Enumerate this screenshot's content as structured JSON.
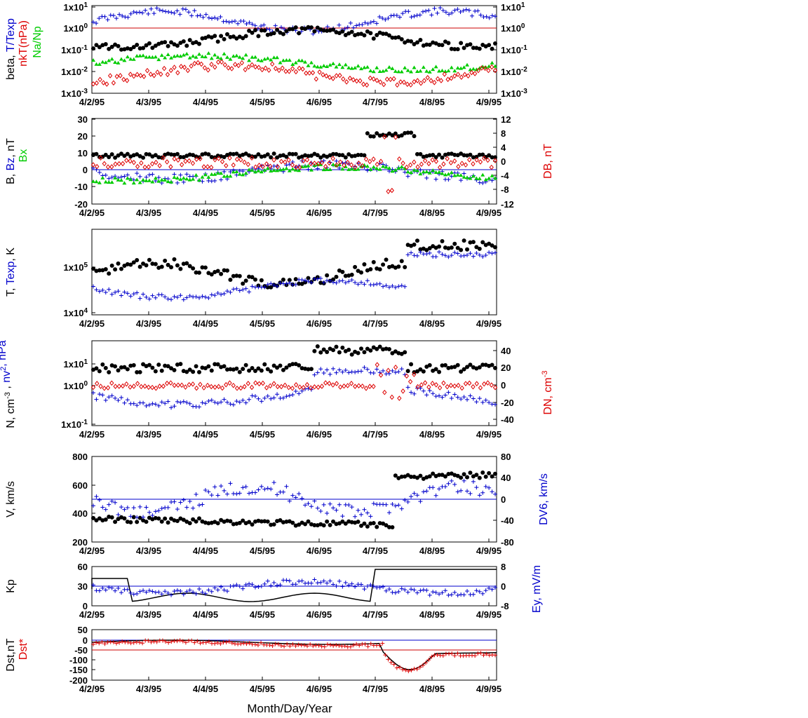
{
  "chart_data": {
    "type": "scatter",
    "x_categories": [
      "4/2/95",
      "4/3/95",
      "4/4/95",
      "4/5/95",
      "4/6/95",
      "4/7/95",
      "4/8/95",
      "4/9/95"
    ],
    "xlabel": "Month/Day/Year",
    "panels": [
      {
        "id": "beta",
        "ylabel_left": [
          {
            "text": "beta, ",
            "color": "#000000"
          },
          {
            "text": "T/Texp",
            "color": "#0000cc"
          }
        ],
        "ylabel_left2": [
          {
            "text": "nkT(nPa)",
            "color": "#dd0000"
          }
        ],
        "ylabel_left3": [
          {
            "text": "Na/Np",
            "color": "#00cc00"
          }
        ],
        "yscale": "log",
        "ylim": [
          0.001,
          10
        ],
        "yticks_left": [
          "1x10-3",
          "1x10-2",
          "1x10-1",
          "1x100",
          "1x101"
        ],
        "yticks_right": [
          "1x10-3",
          "1x10-2",
          "1x10-1",
          "1x100",
          "1x101"
        ],
        "reference_line": {
          "value": 1,
          "color": "#cc0000"
        }
      },
      {
        "id": "magnetic",
        "ylabel_left": [
          {
            "text": "B, ",
            "color": "#000000"
          },
          {
            "text": "Bz",
            "color": "#0000cc"
          },
          {
            "text": ", nT",
            "color": "#000000"
          }
        ],
        "ylabel_left2": [
          {
            "text": "Bx",
            "color": "#00cc00"
          }
        ],
        "ylabel_right": [
          {
            "text": "DB, nT",
            "color": "#dd0000"
          }
        ],
        "ylim": [
          -20,
          30
        ],
        "ylim_right": [
          -12,
          12
        ],
        "yticks_left": [
          "30",
          "20",
          "10",
          "0",
          "-10",
          "-20"
        ],
        "yticks_right": [
          "12",
          "8",
          "4",
          "0",
          "-4",
          "-8",
          "-12"
        ],
        "reference_line": {
          "value": 0,
          "color": "#0000cc"
        }
      },
      {
        "id": "temperature",
        "ylabel_left": [
          {
            "text": "T, ",
            "color": "#000000"
          },
          {
            "text": "Texp",
            "color": "#0000cc"
          },
          {
            "text": ", K",
            "color": "#000000"
          }
        ],
        "yscale": "log",
        "yticks_left": [
          "1x104",
          "1x105"
        ]
      },
      {
        "id": "density",
        "ylabel_left": [
          {
            "text": "N, cm-3 , ",
            "color": "#000000"
          },
          {
            "text": "nv2, nPa",
            "color": "#0000cc"
          }
        ],
        "ylabel_right": [
          {
            "text": "DN, cm-3",
            "color": "#dd0000"
          }
        ],
        "yscale": "log",
        "ylim": [
          0.1,
          50
        ],
        "ylim_right": [
          -50,
          50
        ],
        "yticks_left": [
          "1x10-1",
          "1x100",
          "1x101"
        ],
        "yticks_right": [
          "40",
          "20",
          "0",
          "-20",
          "-40"
        ]
      },
      {
        "id": "velocity",
        "ylabel_left": [
          {
            "text": "V, km/s",
            "color": "#000000"
          }
        ],
        "ylabel_right": [
          {
            "text": "DV6, km/s",
            "color": "#0000cc"
          }
        ],
        "ylim": [
          200,
          800
        ],
        "ylim_right": [
          -80,
          80
        ],
        "yticks_left": [
          "800",
          "600",
          "400",
          "200"
        ],
        "yticks_right": [
          "80",
          "40",
          "0",
          "-40",
          "-80"
        ],
        "reference_line": {
          "value": 0,
          "axis": "right",
          "color": "#0000cc"
        }
      },
      {
        "id": "kp",
        "ylabel_left": [
          {
            "text": "Kp",
            "color": "#000000"
          }
        ],
        "ylabel_right": [
          {
            "text": "Ey,  mV/m",
            "color": "#0000cc"
          }
        ],
        "ylim": [
          0,
          60
        ],
        "ylim_right": [
          -8,
          8
        ],
        "yticks_left": [
          "60",
          "30",
          "0"
        ],
        "yticks_right": [
          "8",
          "0",
          "-8"
        ],
        "reference_line": {
          "value": 0,
          "axis": "right",
          "color": "#0000cc"
        }
      },
      {
        "id": "dst",
        "ylabel_left": [
          {
            "text": "Dst,nT",
            "color": "#000000"
          }
        ],
        "ylabel_left2": [
          {
            "text": "Dst*",
            "color": "#dd0000"
          }
        ],
        "ylim": [
          -200,
          50
        ],
        "yticks_left": [
          "50",
          "0",
          "-50",
          "-100",
          "-150",
          "-200"
        ],
        "reference_lines": [
          {
            "value": 0,
            "color": "#0000cc"
          },
          {
            "value": -50,
            "color": "#cc0000"
          }
        ]
      }
    ]
  }
}
